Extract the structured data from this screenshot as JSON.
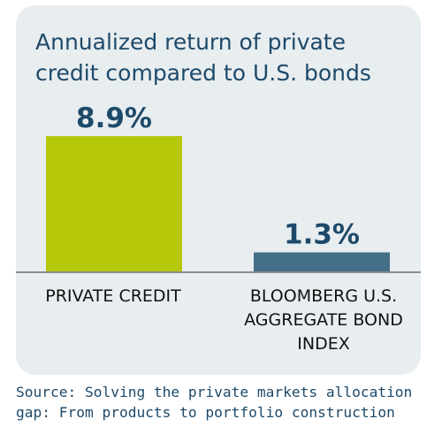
{
  "chart_data": {
    "type": "bar",
    "title": "Annualized return of private credit compared to U.S. bonds",
    "categories": [
      "PRIVATE CREDIT",
      "BLOOMBERG U.S. AGGREGATE BOND INDEX"
    ],
    "values": [
      8.9,
      1.3
    ],
    "value_labels": [
      "8.9%",
      "1.3%"
    ],
    "colors": [
      "#b5c80a",
      "#456f88"
    ],
    "unit": "%",
    "ylim": [
      0,
      8.9
    ],
    "grid": false,
    "legend": "none"
  },
  "footer": {
    "source": "Source: Solving the private markets allocation gap: From products to portfolio construction"
  },
  "style": {
    "card_background": "#e8edf0",
    "title_color": "#1e4a6a",
    "value_label_color": "#1e4a6a",
    "baseline_color": "#8a8d8f",
    "category_label_color": "#111111"
  }
}
